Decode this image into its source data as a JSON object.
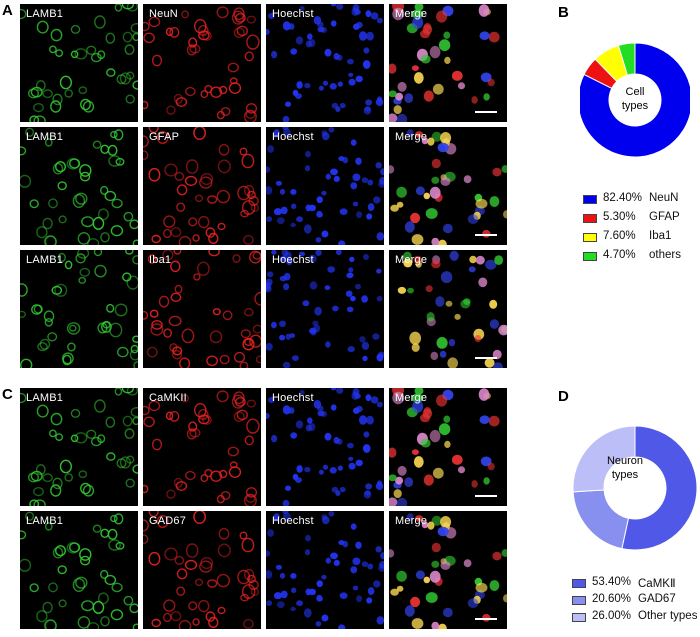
{
  "panels": {
    "A": {
      "letter": "A",
      "rows": [
        {
          "channels": [
            "LAMB1",
            "NeuN",
            "Hoechst",
            "Merge"
          ],
          "scale_bar": true
        },
        {
          "channels": [
            "LAMB1",
            "GFAP",
            "Hoechst",
            "Merge"
          ],
          "scale_bar": true
        },
        {
          "channels": [
            "LAMB1",
            "Iba1",
            "Hoechst",
            "Merge"
          ],
          "scale_bar": true
        }
      ]
    },
    "C": {
      "letter": "C",
      "rows": [
        {
          "channels": [
            "LAMB1",
            "CaMKII",
            "Hoechst",
            "Merge"
          ],
          "scale_bar": true
        },
        {
          "channels": [
            "LAMB1",
            "GAD67",
            "Hoechst",
            "Merge"
          ],
          "scale_bar": true
        }
      ]
    },
    "B": {
      "letter": "B",
      "center_label": [
        "Cell",
        "types"
      ]
    },
    "D": {
      "letter": "D",
      "center_label": [
        "Neuron",
        "types"
      ]
    }
  },
  "chart_data": [
    {
      "type": "pie",
      "panel": "B",
      "donut": true,
      "title": "",
      "slices": [
        {
          "label": "NeuN",
          "value": 82.4,
          "display": "82.40%",
          "color": "#0000ee"
        },
        {
          "label": "GFAP",
          "value": 5.3,
          "display": "5.30%",
          "color": "#ee1111"
        },
        {
          "label": "Iba1",
          "value": 7.6,
          "display": "7.60%",
          "color": "#ffff00"
        },
        {
          "label": "others",
          "value": 4.7,
          "display": "4.70%",
          "color": "#22dd22"
        }
      ],
      "legend_position": "bottom"
    },
    {
      "type": "pie",
      "panel": "D",
      "donut": true,
      "title": "",
      "slices": [
        {
          "label": "CaMKⅡ",
          "value": 53.4,
          "display": "53.40%",
          "color": "#5058e8"
        },
        {
          "label": "GAD67",
          "value": 20.6,
          "display": "20.60%",
          "color": "#8890ef"
        },
        {
          "label": "Other types",
          "value": 26.0,
          "display": "26.00%",
          "color": "#bcbff7"
        }
      ],
      "legend_position": "bottom"
    }
  ]
}
